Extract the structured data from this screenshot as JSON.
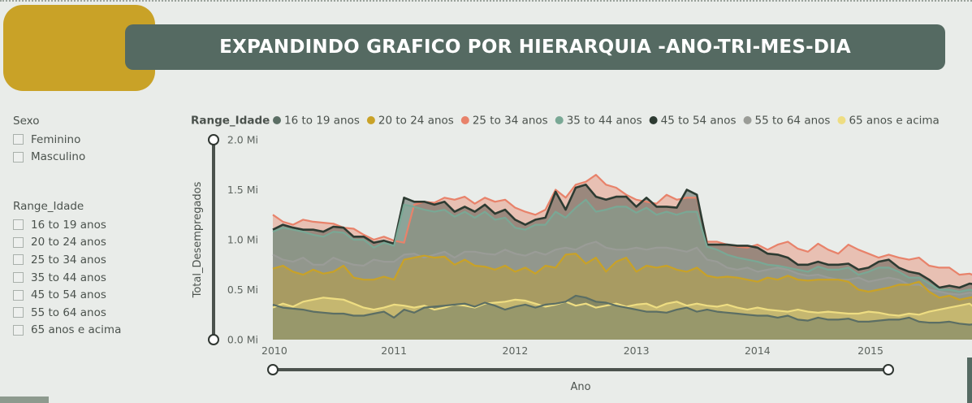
{
  "title": "EXPANDINDO GRAFICO POR HIERARQUIA -ANO-TRI-MES-DIA",
  "slicers": {
    "sexo": {
      "header": "Sexo",
      "options": [
        "Feminino",
        "Masculino"
      ]
    },
    "range_idade": {
      "header": "Range_Idade",
      "options": [
        "16 to 19 anos",
        "20 to 24 anos",
        "25 to 34 anos",
        "35 to 44 anos",
        "45 to 54 anos",
        "55 to 64 anos",
        "65 anos e acima"
      ]
    }
  },
  "chart_data": {
    "type": "area",
    "legend_title": "Range_Idade",
    "legend_position": "top",
    "xlabel": "Ano",
    "ylabel": "Total_Desempregados",
    "x_ticks": [
      "2010",
      "2011",
      "2012",
      "2013",
      "2014",
      "2015"
    ],
    "y_ticks": [
      "0.0 Mi",
      "0.5 Mi",
      "1.0 Mi",
      "1.5 Mi",
      "2.0 Mi"
    ],
    "xlim": [
      2010.0,
      2015.08
    ],
    "ylim": [
      0,
      2.0
    ],
    "grid": false,
    "x_step_months": 1,
    "series": [
      {
        "name": "25 to 34 anos",
        "color": "#e8826a",
        "values": [
          1.25,
          1.18,
          1.15,
          1.2,
          1.18,
          1.17,
          1.16,
          1.12,
          1.11,
          1.05,
          1.0,
          1.03,
          0.99,
          0.97,
          1.35,
          1.38,
          1.37,
          1.42,
          1.4,
          1.43,
          1.36,
          1.42,
          1.38,
          1.4,
          1.32,
          1.28,
          1.25,
          1.3,
          1.5,
          1.42,
          1.55,
          1.58,
          1.65,
          1.55,
          1.52,
          1.45,
          1.4,
          1.38,
          1.36,
          1.45,
          1.4,
          1.42,
          1.42,
          0.98,
          0.98,
          0.95,
          0.93,
          0.92,
          0.95,
          0.9,
          0.95,
          0.98,
          0.91,
          0.88,
          0.96,
          0.9,
          0.86,
          0.95,
          0.9,
          0.86,
          0.82,
          0.85,
          0.82,
          0.8,
          0.82,
          0.74,
          0.72,
          0.72,
          0.65,
          0.66,
          0.62,
          0.66,
          0.65,
          0.6,
          0.62
        ]
      },
      {
        "name": "45 to 54 anos",
        "color": "#2d3b32",
        "values": [
          1.1,
          1.15,
          1.12,
          1.1,
          1.1,
          1.08,
          1.13,
          1.12,
          1.03,
          1.03,
          0.97,
          0.99,
          0.96,
          1.42,
          1.38,
          1.38,
          1.35,
          1.38,
          1.28,
          1.33,
          1.28,
          1.35,
          1.26,
          1.3,
          1.2,
          1.15,
          1.2,
          1.22,
          1.48,
          1.3,
          1.52,
          1.55,
          1.43,
          1.4,
          1.43,
          1.43,
          1.33,
          1.42,
          1.33,
          1.33,
          1.32,
          1.5,
          1.45,
          0.95,
          0.95,
          0.95,
          0.94,
          0.94,
          0.92,
          0.86,
          0.85,
          0.82,
          0.75,
          0.75,
          0.78,
          0.75,
          0.75,
          0.76,
          0.7,
          0.72,
          0.78,
          0.8,
          0.72,
          0.68,
          0.66,
          0.6,
          0.52,
          0.54,
          0.52,
          0.56,
          0.55,
          0.54,
          0.52,
          0.5,
          0.51
        ]
      },
      {
        "name": "35 to 44 anos",
        "color": "#79a895",
        "values": [
          1.08,
          1.12,
          1.1,
          1.08,
          1.05,
          1.03,
          1.08,
          1.07,
          1.0,
          1.0,
          0.92,
          0.97,
          0.94,
          1.35,
          1.33,
          1.3,
          1.28,
          1.3,
          1.23,
          1.28,
          1.22,
          1.28,
          1.2,
          1.22,
          1.12,
          1.1,
          1.15,
          1.15,
          1.28,
          1.22,
          1.32,
          1.4,
          1.28,
          1.3,
          1.33,
          1.33,
          1.27,
          1.32,
          1.25,
          1.28,
          1.25,
          1.28,
          1.28,
          0.93,
          0.9,
          0.85,
          0.82,
          0.8,
          0.78,
          0.75,
          0.74,
          0.72,
          0.7,
          0.68,
          0.73,
          0.7,
          0.7,
          0.72,
          0.65,
          0.68,
          0.72,
          0.72,
          0.68,
          0.62,
          0.62,
          0.56,
          0.5,
          0.5,
          0.48,
          0.5,
          0.48,
          0.48,
          0.46,
          0.48,
          0.45
        ]
      },
      {
        "name": "55 to 64 anos",
        "color": "#9a9c97",
        "values": [
          0.85,
          0.8,
          0.78,
          0.82,
          0.75,
          0.75,
          0.82,
          0.78,
          0.75,
          0.74,
          0.8,
          0.78,
          0.78,
          0.85,
          0.86,
          0.82,
          0.85,
          0.88,
          0.82,
          0.88,
          0.88,
          0.86,
          0.85,
          0.9,
          0.86,
          0.84,
          0.88,
          0.85,
          0.9,
          0.92,
          0.9,
          0.95,
          0.98,
          0.92,
          0.9,
          0.9,
          0.92,
          0.9,
          0.92,
          0.92,
          0.9,
          0.88,
          0.92,
          0.8,
          0.78,
          0.72,
          0.7,
          0.72,
          0.68,
          0.7,
          0.72,
          0.7,
          0.66,
          0.64,
          0.65,
          0.62,
          0.6,
          0.6,
          0.62,
          0.58,
          0.6,
          0.62,
          0.6,
          0.55,
          0.55,
          0.5,
          0.48,
          0.46,
          0.45,
          0.47,
          0.46,
          0.43,
          0.44,
          0.42,
          0.4
        ]
      },
      {
        "name": "20 to 24 anos",
        "color": "#c9a227",
        "values": [
          0.71,
          0.74,
          0.68,
          0.65,
          0.7,
          0.66,
          0.68,
          0.74,
          0.62,
          0.6,
          0.6,
          0.63,
          0.6,
          0.8,
          0.82,
          0.84,
          0.82,
          0.83,
          0.75,
          0.8,
          0.74,
          0.73,
          0.7,
          0.74,
          0.68,
          0.72,
          0.66,
          0.74,
          0.72,
          0.85,
          0.86,
          0.76,
          0.82,
          0.68,
          0.78,
          0.82,
          0.68,
          0.74,
          0.72,
          0.74,
          0.7,
          0.68,
          0.72,
          0.64,
          0.62,
          0.63,
          0.62,
          0.6,
          0.58,
          0.62,
          0.6,
          0.64,
          0.6,
          0.59,
          0.6,
          0.6,
          0.6,
          0.58,
          0.5,
          0.48,
          0.5,
          0.52,
          0.55,
          0.55,
          0.58,
          0.48,
          0.42,
          0.44,
          0.4,
          0.42,
          0.44,
          0.4,
          0.4,
          0.38,
          0.39
        ]
      },
      {
        "name": "65 anos e acima",
        "color": "#eedd82",
        "values": [
          0.32,
          0.36,
          0.33,
          0.38,
          0.4,
          0.42,
          0.41,
          0.4,
          0.36,
          0.32,
          0.3,
          0.32,
          0.35,
          0.34,
          0.32,
          0.34,
          0.3,
          0.32,
          0.35,
          0.34,
          0.32,
          0.36,
          0.37,
          0.38,
          0.4,
          0.39,
          0.36,
          0.33,
          0.35,
          0.38,
          0.34,
          0.36,
          0.32,
          0.34,
          0.36,
          0.33,
          0.35,
          0.36,
          0.32,
          0.36,
          0.38,
          0.34,
          0.36,
          0.34,
          0.33,
          0.35,
          0.32,
          0.3,
          0.32,
          0.3,
          0.29,
          0.28,
          0.3,
          0.28,
          0.27,
          0.28,
          0.27,
          0.26,
          0.26,
          0.28,
          0.27,
          0.25,
          0.24,
          0.26,
          0.25,
          0.28,
          0.3,
          0.32,
          0.34,
          0.36,
          0.28,
          0.28,
          0.27,
          0.25,
          0.27
        ]
      },
      {
        "name": "16 to 19 anos",
        "color": "#5b6e64",
        "values": [
          0.35,
          0.32,
          0.31,
          0.3,
          0.28,
          0.27,
          0.26,
          0.26,
          0.24,
          0.24,
          0.26,
          0.28,
          0.22,
          0.3,
          0.27,
          0.32,
          0.33,
          0.34,
          0.35,
          0.36,
          0.33,
          0.37,
          0.34,
          0.3,
          0.33,
          0.35,
          0.32,
          0.35,
          0.36,
          0.38,
          0.44,
          0.42,
          0.38,
          0.37,
          0.34,
          0.32,
          0.3,
          0.28,
          0.28,
          0.27,
          0.3,
          0.32,
          0.28,
          0.3,
          0.28,
          0.27,
          0.26,
          0.25,
          0.24,
          0.24,
          0.22,
          0.24,
          0.2,
          0.19,
          0.22,
          0.2,
          0.2,
          0.21,
          0.18,
          0.18,
          0.19,
          0.2,
          0.2,
          0.22,
          0.18,
          0.17,
          0.17,
          0.18,
          0.16,
          0.15,
          0.16,
          0.14,
          0.12,
          0.13,
          0.15
        ]
      }
    ]
  }
}
